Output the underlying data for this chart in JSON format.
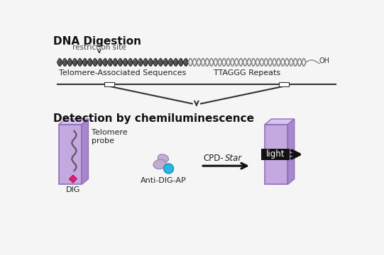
{
  "bg_color": "#f5f5f5",
  "title_dna": "DNA Digestion",
  "title_detect": "Detection by chemiluminescence",
  "label_restriction": "restriction site",
  "label_telomere_seq": "Telomere-Associated Sequences",
  "label_ttaggg": "TTAGGG Repeats",
  "label_oh": "OH",
  "label_dig": "DIG",
  "label_telomere_probe": "Telomere\nprobe",
  "label_anti_dig": "Anti-DIG-AP",
  "label_cpd_normal": "CPD-",
  "label_star_italic": "Star",
  "label_light": "light",
  "arrow_color": "#222222",
  "membrane_color": "#c4a8e0",
  "membrane_top": "#d8c4f0",
  "membrane_right": "#a888cc",
  "membrane_edge": "#9070b8",
  "dig_color": "#e0207a",
  "antibody_color": "#c0aad0",
  "antibody_edge": "#9888b0",
  "cyan_color": "#28b8e0",
  "cyan_edge": "#1090b8",
  "dna_left_fill": "#555555",
  "dna_left_stroke": "#222222",
  "dna_right_stroke": "#888888",
  "funnel_line_color": "#333333",
  "light_box_color": "#111111",
  "light_box_arrow": "#111111",
  "title_fontsize": 11,
  "label_fontsize": 8,
  "restrict_fontsize": 7.5,
  "cpd_fontsize": 8.5
}
